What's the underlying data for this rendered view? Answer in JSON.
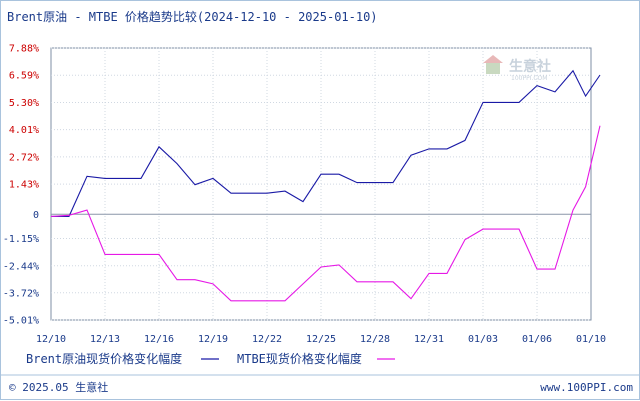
{
  "chart_data": {
    "type": "line",
    "title": "Brent原油 - MTBE 价格趋势比较(2024-12-10 - 2025-01-10)",
    "y_ticks": [
      {
        "value": 7.88,
        "label": "7.88%",
        "color": "#cc0000"
      },
      {
        "value": 6.59,
        "label": "6.59%",
        "color": "#cc0000"
      },
      {
        "value": 5.3,
        "label": "5.30%",
        "color": "#cc0000"
      },
      {
        "value": 4.01,
        "label": "4.01%",
        "color": "#cc0000"
      },
      {
        "value": 2.72,
        "label": "2.72%",
        "color": "#cc0000"
      },
      {
        "value": 1.43,
        "label": "1.43%",
        "color": "#cc0000"
      },
      {
        "value": 0,
        "label": "0",
        "color": "#1a3a8a"
      },
      {
        "value": -1.15,
        "label": "-1.15%",
        "color": "#1a3a8a"
      },
      {
        "value": -2.44,
        "label": "-2.44%",
        "color": "#1a3a8a"
      },
      {
        "value": -3.72,
        "label": "-3.72%",
        "color": "#1a3a8a"
      },
      {
        "value": -5.01,
        "label": "-5.01%",
        "color": "#1a3a8a"
      }
    ],
    "ylim": [
      -5.01,
      7.88
    ],
    "x_ticks": [
      {
        "label": "12/10",
        "index": 0
      },
      {
        "label": "12/13",
        "index": 3
      },
      {
        "label": "12/16",
        "index": 6
      },
      {
        "label": "12/19",
        "index": 9
      },
      {
        "label": "12/22",
        "index": 12
      },
      {
        "label": "12/25",
        "index": 15
      },
      {
        "label": "12/28",
        "index": 18
      },
      {
        "label": "12/31",
        "index": 21
      },
      {
        "label": "01/03",
        "index": 24
      },
      {
        "label": "01/06",
        "index": 27
      },
      {
        "label": "01/10",
        "index": 30
      }
    ],
    "x_count": 30,
    "grid": true,
    "series": [
      {
        "name": "Brent原油现货价格变化幅度",
        "color": "#1a1aa6",
        "points": [
          [
            0,
            -0.1
          ],
          [
            1,
            -0.1
          ],
          [
            2,
            1.8
          ],
          [
            3,
            1.7
          ],
          [
            4,
            1.7
          ],
          [
            5,
            1.7
          ],
          [
            6,
            3.2
          ],
          [
            7,
            2.4
          ],
          [
            8,
            1.4
          ],
          [
            9,
            1.7
          ],
          [
            10,
            1.0
          ],
          [
            11,
            1.0
          ],
          [
            12,
            1.0
          ],
          [
            13,
            1.1
          ],
          [
            14,
            0.6
          ],
          [
            15,
            1.9
          ],
          [
            16,
            1.9
          ],
          [
            17,
            1.5
          ],
          [
            18,
            1.5
          ],
          [
            19,
            1.5
          ],
          [
            20,
            2.8
          ],
          [
            21,
            3.1
          ],
          [
            22,
            3.1
          ],
          [
            23,
            3.5
          ],
          [
            24,
            5.3
          ],
          [
            25,
            5.3
          ],
          [
            26,
            5.3
          ],
          [
            27,
            6.1
          ],
          [
            28,
            5.8
          ],
          [
            29,
            6.8
          ],
          [
            29.7,
            5.6
          ],
          [
            30.5,
            6.6
          ]
        ]
      },
      {
        "name": "MTBE现货价格变化幅度",
        "color": "#e619e6",
        "points": [
          [
            0,
            -0.1
          ],
          [
            1,
            -0.05
          ],
          [
            2,
            0.2
          ],
          [
            3,
            -1.9
          ],
          [
            4,
            -1.9
          ],
          [
            5,
            -1.9
          ],
          [
            6,
            -1.9
          ],
          [
            7,
            -3.1
          ],
          [
            8,
            -3.1
          ],
          [
            9,
            -3.3
          ],
          [
            10,
            -4.1
          ],
          [
            11,
            -4.1
          ],
          [
            12,
            -4.1
          ],
          [
            13,
            -4.1
          ],
          [
            14,
            -3.3
          ],
          [
            15,
            -2.5
          ],
          [
            16,
            -2.4
          ],
          [
            17,
            -3.2
          ],
          [
            18,
            -3.2
          ],
          [
            19,
            -3.2
          ],
          [
            20,
            -4.0
          ],
          [
            21,
            -2.8
          ],
          [
            22,
            -2.8
          ],
          [
            23,
            -1.2
          ],
          [
            24,
            -0.7
          ],
          [
            25,
            -0.7
          ],
          [
            26,
            -0.7
          ],
          [
            27,
            -2.6
          ],
          [
            28,
            -2.6
          ],
          [
            29,
            0.2
          ],
          [
            29.7,
            1.3
          ],
          [
            30.5,
            4.2
          ]
        ]
      }
    ],
    "legend": [
      {
        "label": "Brent原油现货价格变化幅度",
        "color": "#1a1aa6"
      },
      {
        "label": "MTBE现货价格变化幅度",
        "color": "#e619e6"
      }
    ],
    "legend_position": "bottom-left"
  },
  "watermark": {
    "text": "生意社",
    "sub": "100PPI.COM"
  },
  "footer": {
    "copyright": "© 2025.05 生意社",
    "url": "www.100PPI.com"
  }
}
